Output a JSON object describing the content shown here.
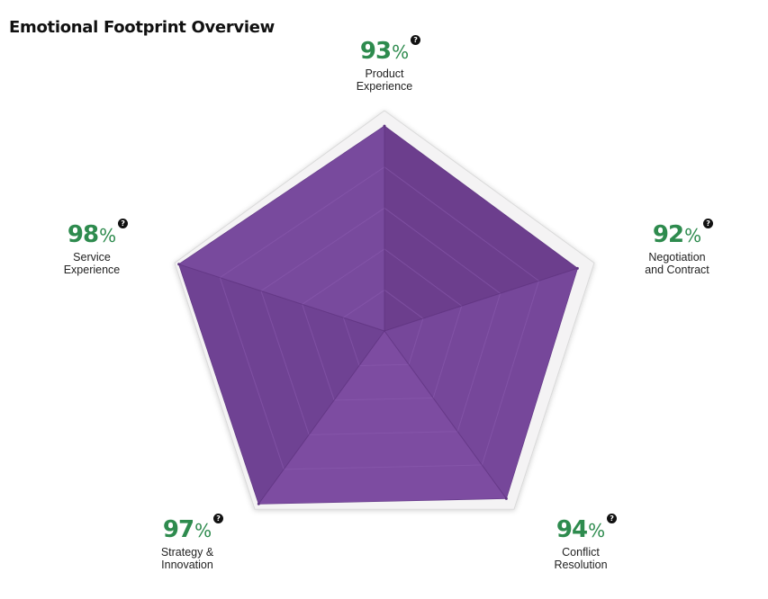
{
  "title": "Emotional Footprint Overview",
  "help_icon": "question-circle-icon",
  "colors": {
    "value": "#2e8b4e",
    "fill": "#7b4a9e",
    "fill_dark": "#5e3480",
    "frame": "#f4f3f4"
  },
  "chart_data": {
    "type": "radar",
    "title": "Emotional Footprint Overview",
    "range": [
      0,
      100
    ],
    "unit": "%",
    "axes": [
      {
        "label": "Product\nExperience",
        "value": 93,
        "display": "93"
      },
      {
        "label": "Negotiation\nand Contract",
        "value": 92,
        "display": "92"
      },
      {
        "label": "Conflict\nResolution",
        "value": 94,
        "display": "94"
      },
      {
        "label": "Strategy &\nInnovation",
        "value": 97,
        "display": "97"
      },
      {
        "label": "Service\nExperience",
        "value": 98,
        "display": "98"
      }
    ]
  }
}
